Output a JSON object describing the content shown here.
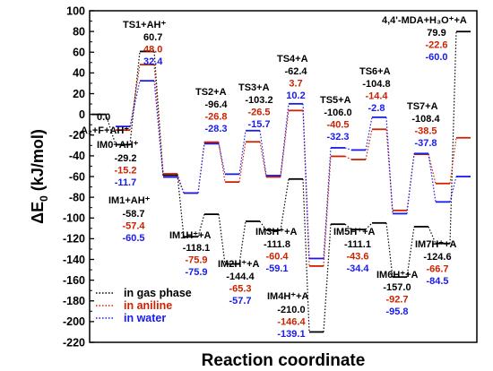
{
  "chart_data": {
    "type": "line",
    "title": "",
    "xlabel": "Reaction coordinate",
    "ylabel": "ΔE",
    "ylabel_sub": "0",
    "ylabel_unit": " (kJ/mol)",
    "ylim": [
      -220,
      100
    ],
    "yticks": [
      -220,
      -200,
      -180,
      -160,
      -140,
      -120,
      -100,
      -80,
      -60,
      -40,
      -20,
      0,
      20,
      40,
      60,
      80,
      100
    ],
    "grid": false,
    "legend_position": "bottom-left",
    "colors": {
      "gas": "#000000",
      "aniline": "#cc2200",
      "water": "#1a1aee"
    },
    "states": [
      {
        "label": "A₂+F+AH⁺",
        "label_sup": "",
        "gas": 0.0,
        "aniline": null,
        "water": null,
        "gas_text": "0.0",
        "aniline_text": "",
        "water_text": ""
      },
      {
        "label": "IM0+AH⁺",
        "gas": -29.2,
        "aniline": -15.2,
        "water": -11.7,
        "gas_text": "-29.2",
        "aniline_text": "-15.2",
        "water_text": "-11.7"
      },
      {
        "label": "TS1+AH⁺",
        "gas": 60.7,
        "aniline": 48.0,
        "water": 32.4,
        "gas_text": "60.7",
        "aniline_text": "48.0",
        "water_text": "32.4"
      },
      {
        "label": "IM1+AH⁺",
        "gas": -58.7,
        "aniline": -57.4,
        "water": -60.5,
        "gas_text": "-58.7",
        "aniline_text": "-57.4",
        "water_text": "-60.5"
      },
      {
        "label": "IM1H⁺+A",
        "gas": -118.1,
        "aniline": -75.9,
        "water": -75.9,
        "gas_text": "-118.1",
        "aniline_text": "-75.9",
        "water_text": "-75.9"
      },
      {
        "label": "TS2+A",
        "gas": -96.4,
        "aniline": -26.8,
        "water": -28.3,
        "gas_text": "-96.4",
        "aniline_text": "-26.8",
        "water_text": "-28.3"
      },
      {
        "label": "IM2H⁺+A",
        "gas": -144.4,
        "aniline": -65.3,
        "water": -57.7,
        "gas_text": "-144.4",
        "aniline_text": "-65.3",
        "water_text": "-57.7"
      },
      {
        "label": "TS3+A",
        "gas": -103.2,
        "aniline": -26.5,
        "water": -15.7,
        "gas_text": "-103.2",
        "aniline_text": "-26.5",
        "water_text": "-15.7"
      },
      {
        "label": "IM3H⁺+A",
        "gas": -111.8,
        "aniline": -60.4,
        "water": -59.1,
        "gas_text": "-111.8",
        "aniline_text": "-60.4",
        "water_text": "-59.1"
      },
      {
        "label": "TS4+A",
        "gas": -62.4,
        "aniline": 3.7,
        "water": 10.2,
        "gas_text": "-62.4",
        "aniline_text": "3.7",
        "water_text": "10.2"
      },
      {
        "label": "IM4H⁺+A",
        "gas": -210.0,
        "aniline": -146.4,
        "water": -139.1,
        "gas_text": "-210.0",
        "aniline_text": "-146.4",
        "water_text": "-139.1"
      },
      {
        "label": "TS5+A",
        "gas": -106.0,
        "aniline": -40.5,
        "water": -32.3,
        "gas_text": "-106.0",
        "aniline_text": "-40.5",
        "water_text": "-32.3"
      },
      {
        "label": "IM5H⁺+A",
        "gas": -111.1,
        "aniline": -43.6,
        "water": -34.4,
        "gas_text": "-111.1",
        "aniline_text": "-43.6",
        "water_text": "-34.4"
      },
      {
        "label": "TS6+A",
        "gas": -104.8,
        "aniline": -14.4,
        "water": -2.8,
        "gas_text": "-104.8",
        "aniline_text": "-14.4",
        "water_text": "-2.8"
      },
      {
        "label": "IM6H⁺+A",
        "gas": -157.0,
        "aniline": -92.7,
        "water": -95.8,
        "gas_text": "-157.0",
        "aniline_text": "-92.7",
        "water_text": "-95.8"
      },
      {
        "label": "TS7+A",
        "gas": -108.4,
        "aniline": -38.5,
        "water": -37.8,
        "gas_text": "-108.4",
        "aniline_text": "-38.5",
        "water_text": "-37.8"
      },
      {
        "label": "IM7H⁺+A",
        "gas": -124.6,
        "aniline": -66.7,
        "water": -84.5,
        "gas_text": "-124.6",
        "aniline_text": "-66.7",
        "water_text": "-84.5"
      },
      {
        "label": "4,4'-MDA+H₃O⁺+A",
        "gas": 79.9,
        "aniline": -22.6,
        "water": -60.0,
        "gas_text": "79.9",
        "aniline_text": "-22.6",
        "water_text": "-60.0"
      }
    ],
    "series": [
      {
        "key": "gas",
        "name": "in gas phase"
      },
      {
        "key": "aniline",
        "name": "in aniline"
      },
      {
        "key": "water",
        "name": "in water"
      }
    ]
  }
}
